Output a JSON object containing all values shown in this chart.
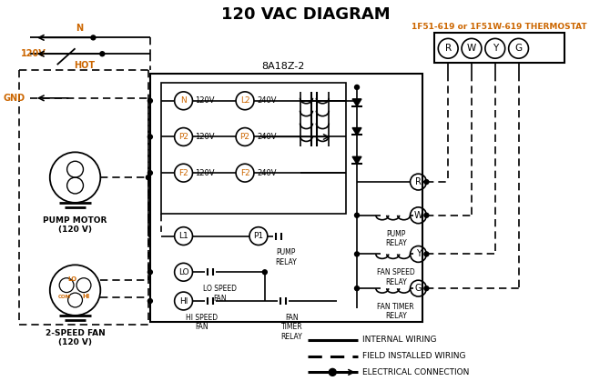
{
  "title": "120 VAC DIAGRAM",
  "bg_color": "#ffffff",
  "line_color": "#000000",
  "orange_color": "#cc6600",
  "thermostat_label": "1F51-619 or 1F51W-619 THERMOSTAT",
  "control_box_label": "8A18Z-2",
  "legend_internal": "INTERNAL WIRING",
  "legend_field": "FIELD INSTALLED WIRING",
  "legend_electrical": "ELECTRICAL CONNECTION",
  "terminal_labels": [
    "R",
    "W",
    "Y",
    "G"
  ],
  "node_labels_left": [
    "N",
    "P2",
    "F2"
  ],
  "node_voltages_left": [
    "120V",
    "120V",
    "120V"
  ],
  "node_labels_right": [
    "L2",
    "P2",
    "F2"
  ],
  "node_voltages_right": [
    "240V",
    "240V",
    "240V"
  ],
  "pump_relay_label": "PUMP\nRELAY",
  "fan_speed_relay_label": "FAN SPEED\nRELAY",
  "fan_timer_relay_label": "FAN TIMER\nRELAY",
  "pump_motor_label": "PUMP MOTOR\n(120 V)",
  "fan_label": "2-SPEED FAN\n(120 V)",
  "lo_speed_fan": "LO SPEED\nFAN",
  "hi_speed_fan": "HI SPEED\nFAN",
  "fan_timer_relay2": "FAN\nTIMER\nRELAY",
  "gnd_label": "GND",
  "hot_label": "HOT",
  "volt_label": "120V",
  "n_label": "N",
  "com_label": "COM"
}
